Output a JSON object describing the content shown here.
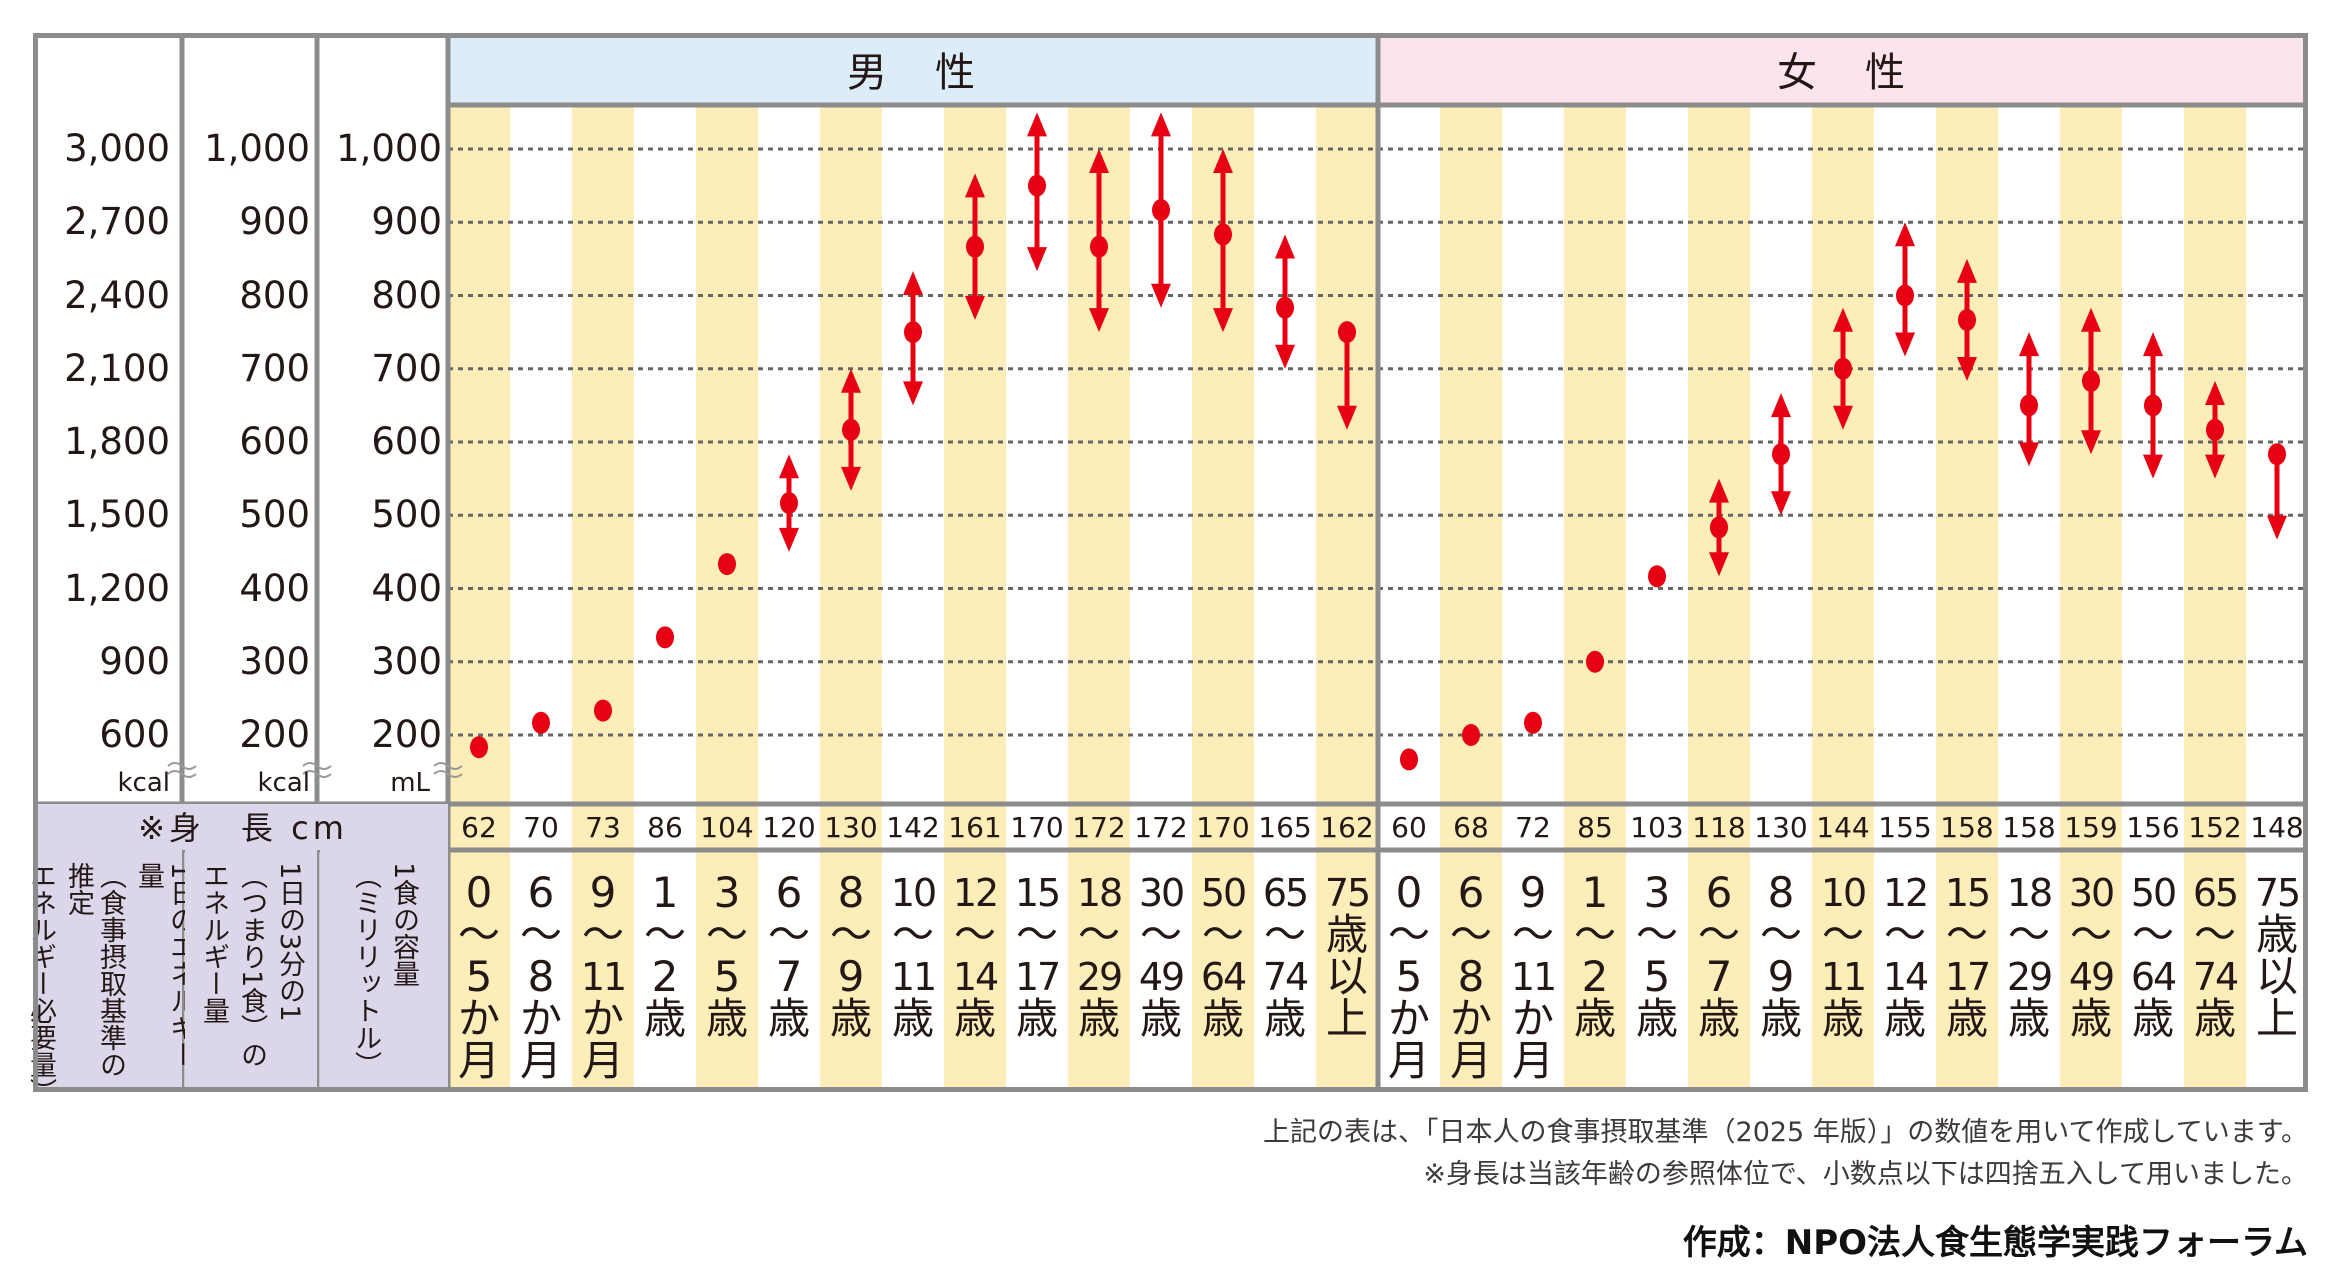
{
  "sections": {
    "male": "男　性",
    "female": "女　性"
  },
  "axes": {
    "kcal_day": {
      "ticks": [
        "3,000",
        "2,700",
        "2,400",
        "2,100",
        "1,800",
        "1,500",
        "1,200",
        "900",
        "600"
      ],
      "unit": "kcal"
    },
    "kcal_meal": {
      "ticks": [
        "1,000",
        "900",
        "800",
        "700",
        "600",
        "500",
        "400",
        "300",
        "200"
      ],
      "unit": "kcal"
    },
    "ml_meal": {
      "ticks": [
        "1,000",
        "900",
        "800",
        "700",
        "600",
        "500",
        "400",
        "300",
        "200"
      ],
      "unit": "mL"
    }
  },
  "row_labels": {
    "height": "※身　長 cm",
    "col1": [
      "1日のエネルギー量",
      "（食事摂取基準の推定",
      "エネルギー必要量）"
    ],
    "col2": [
      "1日の3分の1",
      "（つまり1食）の",
      "エネルギー量"
    ],
    "col3": [
      "1食の容量",
      "（ミリリットル）"
    ]
  },
  "colors": {
    "male_header": "#dcedf9",
    "female_header": "#fbe4ed",
    "stripe": "#fdedb8",
    "label_bg": "#dcd6ea",
    "marker": "#e60012",
    "border": "#8c8c8c",
    "grid": "#666666"
  },
  "chart_data": {
    "type": "scatter",
    "ylim": [
      600,
      3000
    ],
    "yticks": [
      600,
      900,
      1200,
      1500,
      1800,
      2100,
      2400,
      2700,
      3000
    ],
    "grid": true,
    "groups": [
      {
        "name": "男　性",
        "ages": [
          [
            "0",
            "〜",
            "5",
            "か",
            "月"
          ],
          [
            "6",
            "〜",
            "8",
            "か",
            "月"
          ],
          [
            "9",
            "〜",
            "11",
            "か",
            "月"
          ],
          [
            "1",
            "〜",
            "2",
            "歳"
          ],
          [
            "3",
            "〜",
            "5",
            "歳"
          ],
          [
            "6",
            "〜",
            "7",
            "歳"
          ],
          [
            "8",
            "〜",
            "9",
            "歳"
          ],
          [
            "10",
            "〜",
            "11",
            "歳"
          ],
          [
            "12",
            "〜",
            "14",
            "歳"
          ],
          [
            "15",
            "〜",
            "17",
            "歳"
          ],
          [
            "18",
            "〜",
            "29",
            "歳"
          ],
          [
            "30",
            "〜",
            "49",
            "歳"
          ],
          [
            "50",
            "〜",
            "64",
            "歳"
          ],
          [
            "65",
            "〜",
            "74",
            "歳"
          ],
          [
            "75",
            "歳",
            "以",
            "上"
          ]
        ],
        "heights": [
          "62",
          "70",
          "73",
          "86",
          "104",
          "120",
          "130",
          "142",
          "161",
          "170",
          "172",
          "172",
          "170",
          "165",
          "162"
        ],
        "level_II": [
          550,
          650,
          700,
          1000,
          1300,
          1550,
          1850,
          2250,
          2600,
          2850,
          2600,
          2750,
          2650,
          2350,
          2250
        ],
        "level_I": [
          null,
          null,
          null,
          null,
          null,
          1350,
          1600,
          1950,
          2300,
          2500,
          2250,
          2350,
          2250,
          2100,
          1850
        ],
        "level_III": [
          null,
          null,
          null,
          null,
          null,
          1750,
          2100,
          2500,
          2900,
          3150,
          3000,
          3150,
          3000,
          2650,
          null
        ]
      },
      {
        "name": "女　性",
        "ages": [
          [
            "0",
            "〜",
            "5",
            "か",
            "月"
          ],
          [
            "6",
            "〜",
            "8",
            "か",
            "月"
          ],
          [
            "9",
            "〜",
            "11",
            "か",
            "月"
          ],
          [
            "1",
            "〜",
            "2",
            "歳"
          ],
          [
            "3",
            "〜",
            "5",
            "歳"
          ],
          [
            "6",
            "〜",
            "7",
            "歳"
          ],
          [
            "8",
            "〜",
            "9",
            "歳"
          ],
          [
            "10",
            "〜",
            "11",
            "歳"
          ],
          [
            "12",
            "〜",
            "14",
            "歳"
          ],
          [
            "15",
            "〜",
            "17",
            "歳"
          ],
          [
            "18",
            "〜",
            "29",
            "歳"
          ],
          [
            "30",
            "〜",
            "49",
            "歳"
          ],
          [
            "50",
            "〜",
            "64",
            "歳"
          ],
          [
            "65",
            "〜",
            "74",
            "歳"
          ],
          [
            "75",
            "歳",
            "以",
            "上"
          ]
        ],
        "heights": [
          "60",
          "68",
          "72",
          "85",
          "103",
          "118",
          "130",
          "144",
          "155",
          "158",
          "158",
          "159",
          "156",
          "152",
          "148"
        ],
        "level_II": [
          500,
          600,
          650,
          900,
          1250,
          1450,
          1750,
          2100,
          2400,
          2300,
          1950,
          2050,
          1950,
          1850,
          1750
        ],
        "level_I": [
          null,
          null,
          null,
          null,
          null,
          1250,
          1500,
          1850,
          2150,
          2050,
          1700,
          1750,
          1650,
          1650,
          1400
        ],
        "level_III": [
          null,
          null,
          null,
          null,
          null,
          1650,
          2000,
          2350,
          2700,
          2550,
          2250,
          2350,
          2250,
          2050,
          null
        ]
      }
    ]
  },
  "footer": {
    "note1": "上記の表は、「日本人の食事摂取基準（2025 年版）」の数値を用いて作成しています。",
    "note2": "※身長は当該年齢の参照体位で、小数点以下は四捨五入して用いました。",
    "credit": "作成：NPO法人食生態学実践フォーラム"
  }
}
